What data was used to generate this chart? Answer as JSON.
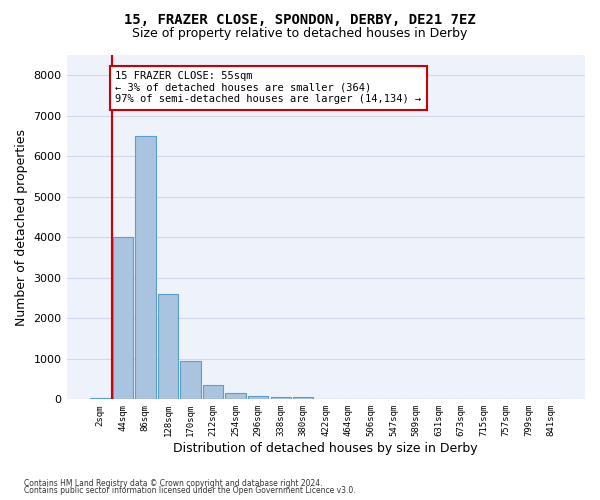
{
  "title1": "15, FRAZER CLOSE, SPONDON, DERBY, DE21 7EZ",
  "title2": "Size of property relative to detached houses in Derby",
  "xlabel": "Distribution of detached houses by size in Derby",
  "ylabel": "Number of detached properties",
  "footnote1": "Contains HM Land Registry data © Crown copyright and database right 2024.",
  "footnote2": "Contains public sector information licensed under the Open Government Licence v3.0.",
  "bin_labels": [
    "2sqm",
    "44sqm",
    "86sqm",
    "128sqm",
    "170sqm",
    "212sqm",
    "254sqm",
    "296sqm",
    "338sqm",
    "380sqm",
    "422sqm",
    "464sqm",
    "506sqm",
    "547sqm",
    "589sqm",
    "631sqm",
    "673sqm",
    "715sqm",
    "757sqm",
    "799sqm",
    "841sqm"
  ],
  "bar_values": [
    25,
    4000,
    6500,
    2600,
    950,
    350,
    150,
    80,
    60,
    55,
    10,
    0,
    0,
    0,
    0,
    0,
    0,
    0,
    0,
    0,
    0
  ],
  "bar_color": "#aac4e0",
  "bar_edge_color": "#5a9ecf",
  "grid_color": "#d0d8f0",
  "background_color": "#eef2fa",
  "property_line_color": "#cc0000",
  "annotation_text": "15 FRAZER CLOSE: 55sqm\n← 3% of detached houses are smaller (364)\n97% of semi-detached houses are larger (14,134) →",
  "annotation_box_color": "#cc0000",
  "ylim": [
    0,
    8500
  ],
  "yticks": [
    0,
    1000,
    2000,
    3000,
    4000,
    5000,
    6000,
    7000,
    8000
  ]
}
